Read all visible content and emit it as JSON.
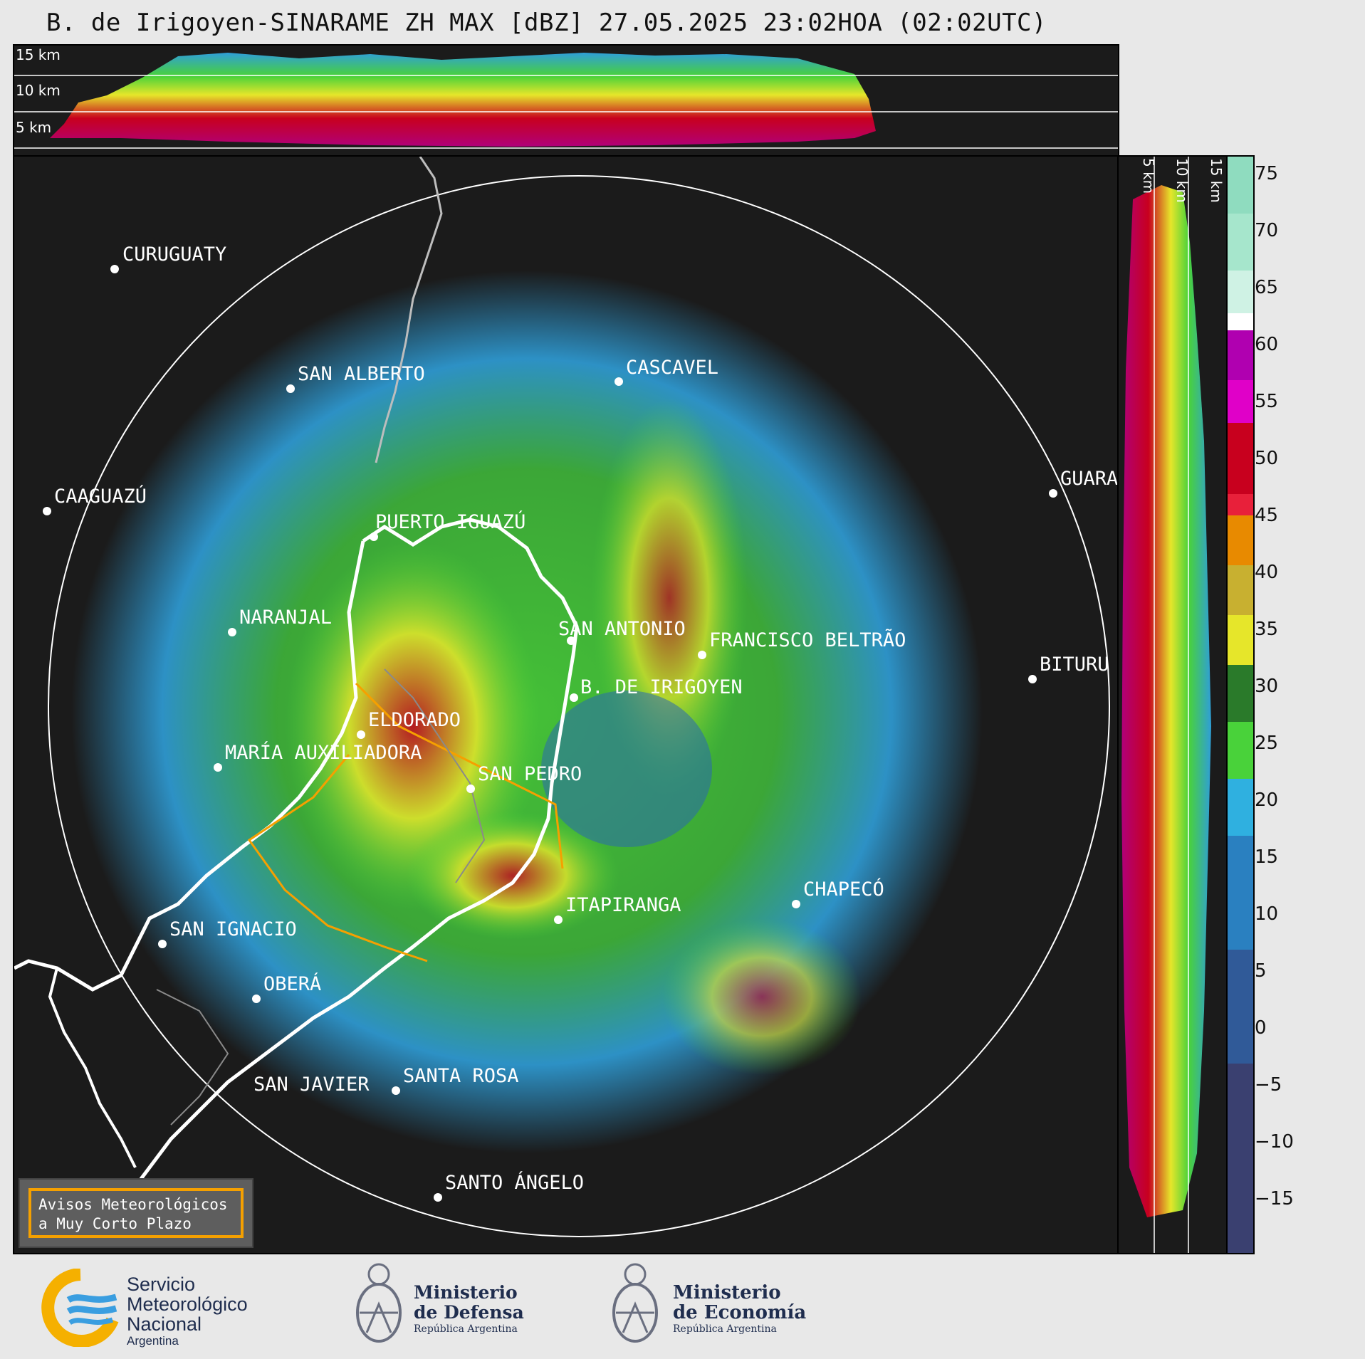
{
  "title": "B. de Irigoyen-SINARAME ZH MAX [dBZ] 27.05.2025 23:02HOA (02:02UTC)",
  "top_panel": {
    "height_labels": [
      "15 km",
      "10 km",
      "5 km"
    ]
  },
  "side_panel": {
    "height_labels": [
      "5 km",
      "10 km",
      "15 km"
    ]
  },
  "colorbar": {
    "ticks": [
      "75",
      "70",
      "65",
      "60",
      "55",
      "50",
      "45",
      "40",
      "35",
      "30",
      "25",
      "20",
      "15",
      "10",
      "5",
      "0",
      "−5",
      "−10",
      "−15"
    ],
    "colors": {
      "teal": "#8fdcbf",
      "white": "#ffffff",
      "magenta": "#d400c0",
      "red": "#c8001e",
      "orange": "#e88a00",
      "yellow": "#e6e62a",
      "green": "#2a8f2a",
      "lightgreen": "#49d23a",
      "blue": "#2f9ed8",
      "darkblue": "#3a4070"
    }
  },
  "cities": [
    {
      "name": "CURUGUATY"
    },
    {
      "name": "SAN ALBERTO"
    },
    {
      "name": "CASCAVEL"
    },
    {
      "name": "CAAGUAZÚ"
    },
    {
      "name": "GUARA"
    },
    {
      "name": "PUERTO IGUAZÚ"
    },
    {
      "name": "NARANJAL"
    },
    {
      "name": "SAN ANTONIO"
    },
    {
      "name": "FRANCISCO BELTRÃO"
    },
    {
      "name": "BITURU"
    },
    {
      "name": "B. DE IRIGOYEN"
    },
    {
      "name": "ELDORADO"
    },
    {
      "name": "MARÍA AUXILIADORA"
    },
    {
      "name": "SAN PEDRO"
    },
    {
      "name": "CHAPECÓ"
    },
    {
      "name": "ITAPIRANGA"
    },
    {
      "name": "SAN IGNACIO"
    },
    {
      "name": "OBERÁ"
    },
    {
      "name": "SAN JAVIER"
    },
    {
      "name": "SANTA ROSA"
    },
    {
      "name": "SANTO ÁNGELO"
    }
  ],
  "warning_box": {
    "line1": "Avisos Meteorológicos",
    "line2": "a Muy Corto Plazo"
  },
  "footer": {
    "smn": {
      "line1": "Servicio",
      "line2": "Meteorológico",
      "line3": "Nacional",
      "line4": "Argentina"
    },
    "defensa": {
      "line1": "Ministerio",
      "line2": "de Defensa",
      "line3": "República Argentina"
    },
    "economia": {
      "line1": "Ministerio",
      "line2": "de Economía",
      "line3": "República Argentina"
    }
  }
}
